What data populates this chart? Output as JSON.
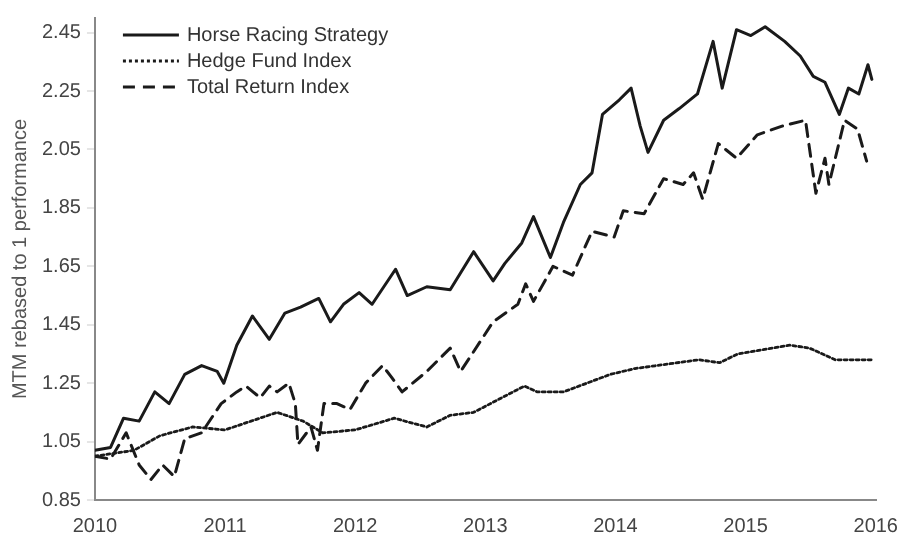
{
  "chart_data": {
    "type": "line",
    "ylabel": "MTM rebased to 1 performance",
    "xlim": [
      2010,
      2016
    ],
    "xticks": [
      2010,
      2011,
      2012,
      2013,
      2014,
      2015,
      2016
    ],
    "ylim": [
      0.85,
      2.5
    ],
    "yticks": [
      0.85,
      1.05,
      1.25,
      1.45,
      1.65,
      1.85,
      2.05,
      2.25,
      2.45
    ],
    "grid": false,
    "legend": "top left",
    "marker": "none",
    "series": [
      {
        "name": "Horse Racing Strategy",
        "color": "#1a1a1a",
        "line_style": "solid",
        "x": [
          2010,
          2010.12,
          2010.22,
          2010.34,
          2010.46,
          2010.57,
          2010.69,
          2010.82,
          2010.94,
          2010.99,
          2011.09,
          2011.21,
          2011.34,
          2011.46,
          2011.58,
          2011.72,
          2011.81,
          2011.91,
          2012.03,
          2012.13,
          2012.31,
          2012.4,
          2012.55,
          2012.73,
          2012.91,
          2013.06,
          2013.15,
          2013.28,
          2013.37,
          2013.5,
          2013.6,
          2013.73,
          2013.82,
          2013.9,
          2014.03,
          2014.12,
          2014.19,
          2014.25,
          2014.37,
          2014.49,
          2014.63,
          2014.75,
          2014.82,
          2014.93,
          2015.04,
          2015.15,
          2015.3,
          2015.42,
          2015.52,
          2015.61,
          2015.72,
          2015.79,
          2015.87,
          2015.94,
          2015.97
        ],
        "values": [
          1.02,
          1.03,
          1.13,
          1.12,
          1.22,
          1.18,
          1.28,
          1.31,
          1.29,
          1.25,
          1.38,
          1.48,
          1.4,
          1.49,
          1.51,
          1.54,
          1.46,
          1.52,
          1.56,
          1.52,
          1.64,
          1.55,
          1.58,
          1.57,
          1.7,
          1.6,
          1.66,
          1.73,
          1.82,
          1.68,
          1.8,
          1.93,
          1.97,
          2.17,
          2.22,
          2.26,
          2.13,
          2.04,
          2.15,
          2.19,
          2.24,
          2.42,
          2.26,
          2.46,
          2.44,
          2.47,
          2.42,
          2.37,
          2.3,
          2.28,
          2.17,
          2.26,
          2.24,
          2.34,
          2.29
        ]
      },
      {
        "name": "Hedge Fund Index",
        "color": "#1a1a1a",
        "line_style": "dotted",
        "x": [
          2010,
          2010.3,
          2010.5,
          2010.75,
          2011,
          2011.2,
          2011.4,
          2011.6,
          2011.75,
          2012,
          2012.3,
          2012.55,
          2012.73,
          2012.91,
          2013.3,
          2013.4,
          2013.6,
          2013.96,
          2014.15,
          2014.64,
          2014.8,
          2014.94,
          2015.34,
          2015.49,
          2015.69,
          2015.97
        ],
        "values": [
          1,
          1.02,
          1.07,
          1.1,
          1.09,
          1.12,
          1.15,
          1.12,
          1.08,
          1.09,
          1.13,
          1.1,
          1.14,
          1.15,
          1.24,
          1.22,
          1.22,
          1.28,
          1.3,
          1.33,
          1.32,
          1.35,
          1.38,
          1.37,
          1.33,
          1.33
        ]
      },
      {
        "name": "Total Return Index",
        "color": "#1a1a1a",
        "line_style": "dashed",
        "x": [
          2010,
          2010.12,
          2010.24,
          2010.34,
          2010.43,
          2010.52,
          2010.61,
          2010.69,
          2010.82,
          2010.97,
          2011.09,
          2011.16,
          2011.27,
          2011.34,
          2011.4,
          2011.49,
          2011.54,
          2011.56,
          2011.66,
          2011.71,
          2011.76,
          2011.86,
          2011.96,
          2012.08,
          2012.21,
          2012.28,
          2012.36,
          2012.55,
          2012.73,
          2012.81,
          2013.06,
          2013.25,
          2013.31,
          2013.37,
          2013.52,
          2013.67,
          2013.82,
          2013.99,
          2014.06,
          2014.22,
          2014.37,
          2014.52,
          2014.6,
          2014.67,
          2014.79,
          2014.93,
          2015.09,
          2015.28,
          2015.46,
          2015.54,
          2015.61,
          2015.64,
          2015.76,
          2015.86,
          2015.93
        ],
        "values": [
          1,
          0.99,
          1.08,
          0.97,
          0.92,
          0.97,
          0.93,
          1.06,
          1.08,
          1.18,
          1.22,
          1.24,
          1.2,
          1.24,
          1.22,
          1.25,
          1.18,
          1.04,
          1.1,
          1.02,
          1.18,
          1.18,
          1.16,
          1.25,
          1.31,
          1.27,
          1.22,
          1.29,
          1.37,
          1.29,
          1.46,
          1.52,
          1.59,
          1.53,
          1.65,
          1.62,
          1.77,
          1.75,
          1.84,
          1.83,
          1.95,
          1.93,
          1.97,
          1.88,
          2.07,
          2.02,
          2.1,
          2.13,
          2.15,
          1.9,
          2.02,
          1.93,
          2.15,
          2.12,
          2.01
        ]
      }
    ]
  }
}
